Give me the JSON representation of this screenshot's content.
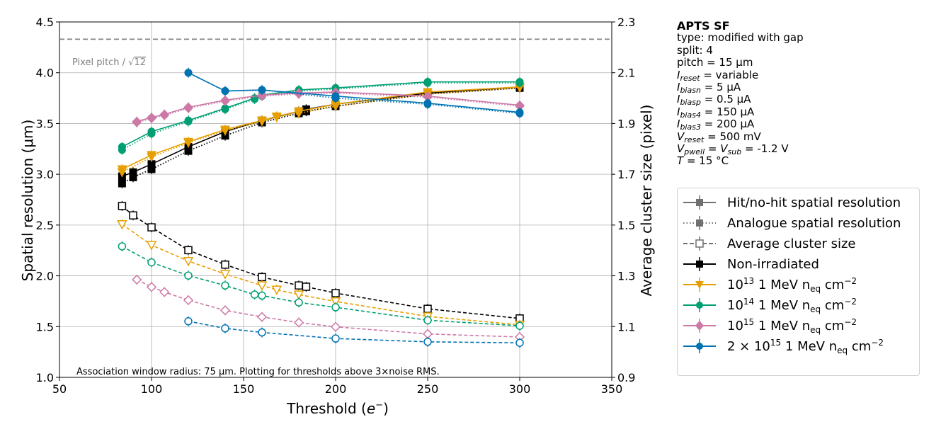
{
  "chart_data": {
    "type": "line",
    "xlabel": "Threshold (e−)",
    "ylabel_left": "Spatial resolution (μm)",
    "ylabel_right": "Average cluster size (pixel)",
    "xlim": [
      50,
      350
    ],
    "ylim_left": [
      1.0,
      4.5
    ],
    "ylim_right": [
      0.9,
      2.3
    ],
    "xticks": [
      "50",
      "100",
      "150",
      "200",
      "250",
      "300",
      "350"
    ],
    "yticks_left": [
      "1.0",
      "1.5",
      "2.0",
      "2.5",
      "3.0",
      "3.5",
      "4.0",
      "4.5"
    ],
    "yticks_right": [
      "0.9",
      "1.1",
      "1.3",
      "1.5",
      "1.7",
      "1.9",
      "2.1",
      "2.3"
    ],
    "grid": true,
    "pixel_pitch_line": {
      "value": 4.33,
      "label": "Pixel pitch / √12",
      "sqrt_arg": "12",
      "label_prefix": "Pixel pitch / "
    },
    "annotation": "Association window radius: 75 μm. Plotting for thresholds above 3×noise RMS.",
    "series": [
      {
        "name": "Non-irradiated",
        "color": "#000000",
        "marker": "square",
        "x": [
          84,
          90,
          100,
          120,
          140,
          160,
          180,
          184,
          200,
          250,
          300
        ],
        "hit_resolution": [
          2.98,
          3.02,
          3.1,
          3.27,
          3.42,
          3.53,
          3.62,
          3.64,
          3.69,
          3.8,
          3.86
        ],
        "analogue_resolution": [
          2.91,
          2.97,
          3.05,
          3.23,
          3.38,
          3.51,
          3.6,
          3.62,
          3.67,
          3.79,
          3.85
        ],
        "cluster_size": [
          1.575,
          1.538,
          1.491,
          1.401,
          1.344,
          1.295,
          1.262,
          1.257,
          1.232,
          1.17,
          1.132
        ]
      },
      {
        "name": "1e13 1 MeV neq cm-2",
        "color": "#E69F00",
        "marker": "triangle-down",
        "x": [
          84,
          100,
          120,
          140,
          160,
          168,
          180,
          200,
          250,
          300
        ],
        "hit_resolution": [
          3.05,
          3.19,
          3.32,
          3.44,
          3.53,
          3.57,
          3.62,
          3.69,
          3.81,
          3.86
        ],
        "analogue_resolution": [
          3.02,
          3.17,
          3.31,
          3.43,
          3.52,
          3.56,
          3.6,
          3.67,
          3.79,
          3.85
        ],
        "cluster_size": [
          1.503,
          1.421,
          1.358,
          1.307,
          1.262,
          1.245,
          1.226,
          1.199,
          1.14,
          1.107
        ]
      },
      {
        "name": "1e14 1 MeV neq cm-2",
        "color": "#009E73",
        "marker": "circle",
        "x": [
          84,
          100,
          120,
          140,
          156,
          160,
          180,
          200,
          250,
          300
        ],
        "hit_resolution": [
          3.27,
          3.42,
          3.53,
          3.65,
          3.75,
          3.78,
          3.83,
          3.85,
          3.91,
          3.91
        ],
        "analogue_resolution": [
          3.24,
          3.4,
          3.52,
          3.64,
          3.74,
          3.77,
          3.82,
          3.84,
          3.9,
          3.9
        ],
        "cluster_size": [
          1.416,
          1.353,
          1.301,
          1.262,
          1.226,
          1.222,
          1.195,
          1.176,
          1.125,
          1.103
        ]
      },
      {
        "name": "1e15 1 MeV neq cm-2",
        "color": "#CC79A7",
        "marker": "diamond",
        "x": [
          92,
          100,
          107,
          120,
          140,
          160,
          180,
          200,
          250,
          300
        ],
        "hit_resolution": [
          3.52,
          3.56,
          3.59,
          3.66,
          3.73,
          3.78,
          3.8,
          3.81,
          3.77,
          3.68
        ],
        "analogue_resolution": [
          3.51,
          3.55,
          3.58,
          3.65,
          3.72,
          3.77,
          3.79,
          3.8,
          3.76,
          3.67
        ],
        "cluster_size": [
          1.285,
          1.256,
          1.236,
          1.204,
          1.164,
          1.138,
          1.116,
          1.099,
          1.071,
          1.059
        ]
      },
      {
        "name": "2e15 1 MeV neq cm-2",
        "color": "#0072B2",
        "marker": "circle",
        "x": [
          120,
          140,
          160,
          200,
          250,
          300
        ],
        "hit_resolution": [
          4.0,
          3.82,
          3.83,
          3.77,
          3.7,
          3.61
        ],
        "analogue_resolution": [
          4.0,
          3.82,
          3.83,
          3.75,
          3.69,
          3.6
        ],
        "cluster_size": [
          1.121,
          1.093,
          1.077,
          1.053,
          1.04,
          1.036
        ]
      }
    ]
  },
  "info": {
    "title": "APTS SF",
    "type_line": "type: modified with gap",
    "split_line": "split:  4",
    "pitch_line": "pitch = 15 μm",
    "reset_value": "variable",
    "biasn_value": "5 μA",
    "biasp_value": "0.5 μA",
    "bias4_value": "150 μA",
    "bias3_value": "200 μA",
    "vreset_value": "500 mV",
    "vpwell_value": "-1.2 V",
    "temp_value": "15 °C"
  },
  "legend": {
    "hit": "Hit/no-hit spatial resolution",
    "analogue": "Analogue spatial resolution",
    "cluster": "Average cluster size",
    "nonirr": "Non-irradiated",
    "unit": "1 MeV n",
    "unit_sub": "eq",
    "unit_cm": " cm",
    "unit_exp": "−2",
    "f13_exp": "13",
    "f14_exp": "14",
    "f15_exp": "15",
    "f2e15_prefix": "2 × 10",
    "ten": "10"
  }
}
